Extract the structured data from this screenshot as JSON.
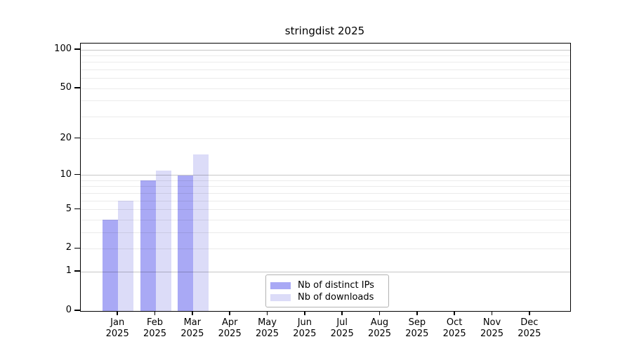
{
  "chart_data": {
    "type": "bar",
    "title": "stringdist 2025",
    "categories": [
      "Jan",
      "Feb",
      "Mar",
      "Apr",
      "May",
      "Jun",
      "Jul",
      "Aug",
      "Sep",
      "Oct",
      "Nov",
      "Dec"
    ],
    "year_label": "2025",
    "series": [
      {
        "name": "Nb of distinct IPs",
        "color": "#a9a9f5",
        "values": [
          4,
          9,
          10,
          0,
          0,
          0,
          0,
          0,
          0,
          0,
          0,
          0
        ]
      },
      {
        "name": "Nb of downloads",
        "color": "#dcdcf8",
        "values": [
          6,
          11,
          15,
          0,
          0,
          0,
          0,
          0,
          0,
          0,
          0,
          0
        ]
      }
    ],
    "y_axis": {
      "scale": "log1p",
      "ticks": [
        0,
        1,
        2,
        5,
        10,
        20,
        50,
        100
      ],
      "ylim": [
        0,
        112
      ],
      "major_gridlines": [
        1,
        10,
        100
      ],
      "minor_gridlines": [
        2,
        3,
        4,
        5,
        6,
        7,
        8,
        9,
        20,
        30,
        40,
        50,
        60,
        70,
        80,
        90
      ]
    },
    "x_axis": {
      "tick_count": 12
    },
    "legend": {
      "position": "inside-bottom-center",
      "entries": [
        "Nb of distinct IPs",
        "Nb of downloads"
      ]
    },
    "grid": true,
    "colors": {
      "axis": "#000000",
      "minor_grid": "#ececec",
      "major_grid": "#c7c7c7",
      "background": "#ffffff",
      "legend_border": "#b3b3b3"
    }
  }
}
